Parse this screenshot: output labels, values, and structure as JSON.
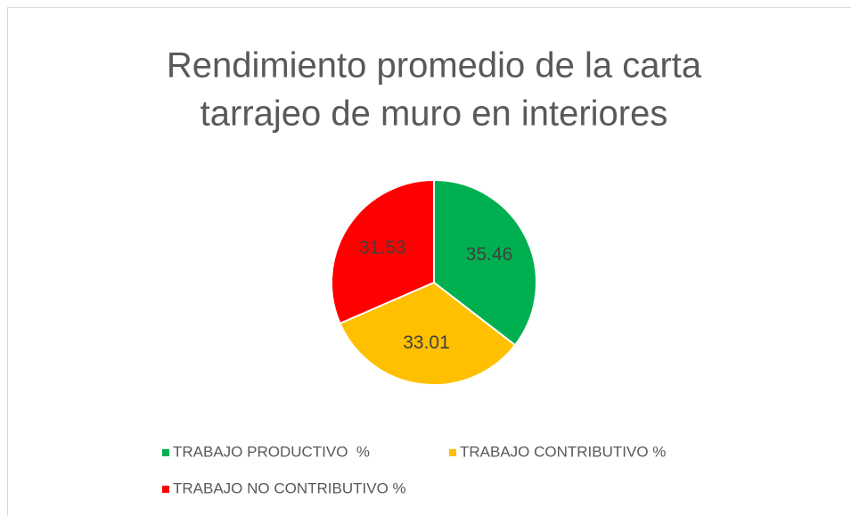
{
  "chart_data": {
    "type": "pie",
    "title": [
      "Rendimiento promedio de la carta",
      "tarrajeo de muro en interiores"
    ],
    "categories": [
      "TRABAJO PRODUCTIVO  %",
      "TRABAJO CONTRIBUTIVO %",
      "TRABAJO NO CONTRIBUTIVO %"
    ],
    "values": [
      35.46,
      33.01,
      31.53
    ],
    "colors": [
      "#00b050",
      "#ffc000",
      "#ff0000"
    ],
    "legend": "bottom"
  }
}
